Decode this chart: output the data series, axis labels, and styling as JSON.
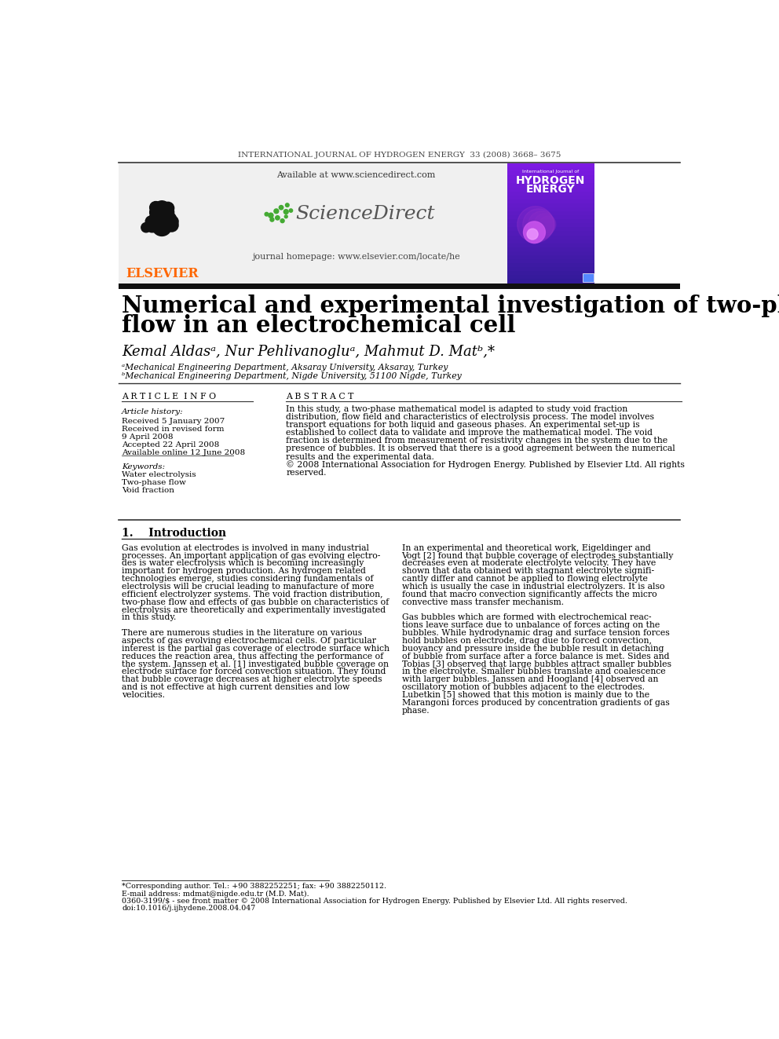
{
  "journal_header": "INTERNATIONAL JOURNAL OF HYDROGEN ENERGY  33 (2008) 3668– 3675",
  "title_line1": "Numerical and experimental investigation of two-phase",
  "title_line2": "flow in an electrochemical cell",
  "authors": "Kemal Aldasᵃ, Nur Pehlivanogluᵃ, Mahmut D. Matᵇ,*",
  "affil_a": "ᵃMechanical Engineering Department, Aksaray University, Aksaray, Turkey",
  "affil_b": "ᵇMechanical Engineering Department, Nigde University, 51100 Nigde, Turkey",
  "sciencedirect_available": "Available at www.sciencedirect.com",
  "sciencedirect_name": "ScienceDirect",
  "journal_homepage": "journal homepage: www.elsevier.com/locate/he",
  "elsevier_text": "ELSEVIER",
  "article_info_header": "A R T I C L E  I N F O",
  "abstract_header": "A B S T R A C T",
  "article_history_label": "Article history:",
  "received1": "Received 5 January 2007",
  "received_revised": "Received in revised form",
  "received_revised_date": "9 April 2008",
  "accepted": "Accepted 22 April 2008",
  "available_online": "Available online 12 June 2008",
  "keywords_label": "Keywords:",
  "keyword1": "Water electrolysis",
  "keyword2": "Two-phase flow",
  "keyword3": "Void fraction",
  "intro_header": "1.    Introduction",
  "footnote_corresponding": "*Corresponding author. Tel.: +90 3882252251; fax: +90 3882250112.",
  "footnote_email": "E-mail address: mdmat@nigde.edu.tr (M.D. Mat).",
  "footnote_issn": "0360-3199/$ - see front matter © 2008 International Association for Hydrogen Energy. Published by Elsevier Ltd. All rights reserved.",
  "footnote_doi": "doi:10.1016/j.ijhydene.2008.04.047",
  "bg_color": "#ffffff",
  "elsevier_color": "#ff6600",
  "dark_color": "#1a1a2e"
}
